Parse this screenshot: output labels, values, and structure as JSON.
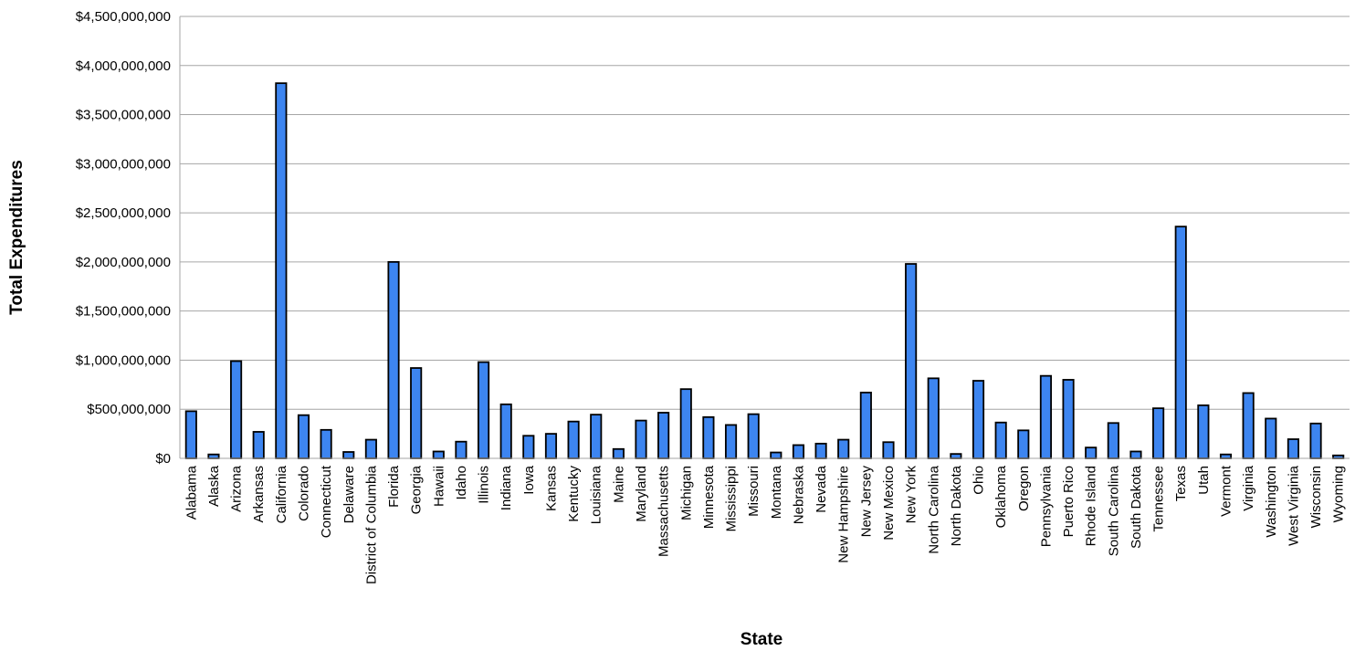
{
  "chart_data": {
    "type": "bar",
    "title": "",
    "xlabel": "State",
    "ylabel": "Total Expenditures",
    "ylim": [
      0,
      4500000000
    ],
    "ytick_step": 500000000,
    "ytick_labels": [
      "$0",
      "$500,000,000",
      "$1,000,000,000",
      "$1,500,000,000",
      "$2,000,000,000",
      "$2,500,000,000",
      "$3,000,000,000",
      "$3,500,000,000",
      "$4,000,000,000",
      "$4,500,000,000"
    ],
    "grid": true,
    "legend": "none",
    "bar_color": "#3d85f0",
    "categories": [
      "Alabama",
      "Alaska",
      "Arizona",
      "Arkansas",
      "California",
      "Colorado",
      "Connecticut",
      "Delaware",
      "District of Columbia",
      "Florida",
      "Georgia",
      "Hawaii",
      "Idaho",
      "Illinois",
      "Indiana",
      "Iowa",
      "Kansas",
      "Kentucky",
      "Louisiana",
      "Maine",
      "Maryland",
      "Massachusetts",
      "Michigan",
      "Minnesota",
      "Mississippi",
      "Missouri",
      "Montana",
      "Nebraska",
      "Nevada",
      "New Hampshire",
      "New Jersey",
      "New Mexico",
      "New York",
      "North Carolina",
      "North Dakota",
      "Ohio",
      "Oklahoma",
      "Oregon",
      "Pennsylvania",
      "Puerto Rico",
      "Rhode Island",
      "South Carolina",
      "South Dakota",
      "Tennessee",
      "Texas",
      "Utah",
      "Vermont",
      "Virginia",
      "Washington",
      "West Virginia",
      "Wisconsin",
      "Wyoming"
    ],
    "values": [
      480000000,
      40000000,
      990000000,
      270000000,
      3820000000,
      440000000,
      290000000,
      65000000,
      190000000,
      2000000000,
      920000000,
      70000000,
      170000000,
      980000000,
      550000000,
      230000000,
      250000000,
      375000000,
      445000000,
      95000000,
      385000000,
      465000000,
      705000000,
      420000000,
      340000000,
      450000000,
      60000000,
      135000000,
      150000000,
      190000000,
      670000000,
      165000000,
      1980000000,
      815000000,
      45000000,
      790000000,
      365000000,
      285000000,
      840000000,
      800000000,
      110000000,
      360000000,
      70000000,
      510000000,
      2360000000,
      540000000,
      40000000,
      665000000,
      405000000,
      195000000,
      355000000,
      30000000
    ]
  }
}
